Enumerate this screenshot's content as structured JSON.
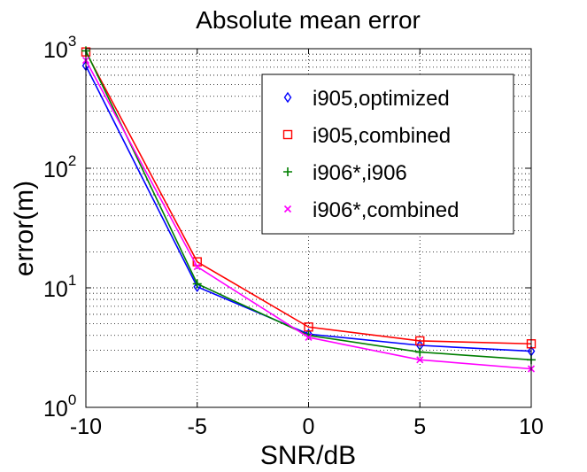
{
  "chart_data": {
    "type": "line",
    "title": "Absolute mean error",
    "xlabel": "SNR/dB",
    "ylabel": "error(m)",
    "x": [
      -10,
      -5,
      0,
      5,
      10
    ],
    "xlim": [
      -10,
      10
    ],
    "ylim": [
      1,
      1000
    ],
    "yscale": "log",
    "x_ticks": [
      "-10",
      "-5",
      "0",
      "5",
      "10"
    ],
    "y_ticks": [
      {
        "base": "10",
        "exp": "0"
      },
      {
        "base": "10",
        "exp": "1"
      },
      {
        "base": "10",
        "exp": "2"
      },
      {
        "base": "10",
        "exp": "3"
      }
    ],
    "grid": true,
    "legend_position": "top-right",
    "series": [
      {
        "name": "i905,optimized",
        "color": "#0000ff",
        "marker": "diamond",
        "values": [
          720,
          10.2,
          4.1,
          3.3,
          2.95
        ]
      },
      {
        "name": "i905,combined",
        "color": "#ff0000",
        "marker": "square",
        "values": [
          940,
          16.5,
          4.7,
          3.6,
          3.4
        ]
      },
      {
        "name": "i906*,i906",
        "color": "#007f00",
        "marker": "plus",
        "values": [
          960,
          10.8,
          4.0,
          2.9,
          2.5
        ]
      },
      {
        "name": "i906*,combined",
        "color": "#ff00ff",
        "marker": "x",
        "values": [
          800,
          15.0,
          3.85,
          2.5,
          2.1
        ]
      }
    ]
  }
}
